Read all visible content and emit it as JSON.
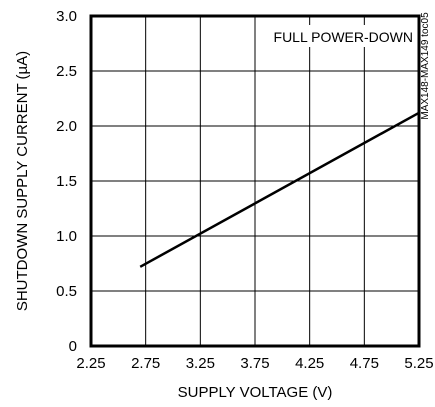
{
  "chart_data": {
    "type": "line",
    "title": "",
    "xlabel": "SUPPLY VOLTAGE (V)",
    "ylabel": "SHUTDOWN SUPPLY CURRENT (µA)",
    "xlim": [
      2.25,
      5.25
    ],
    "ylim": [
      0,
      3.0
    ],
    "x_ticks": [
      "2.25",
      "2.75",
      "3.25",
      "3.75",
      "4.25",
      "4.75",
      "5.25"
    ],
    "y_ticks": [
      "0",
      "0.5",
      "1.0",
      "1.5",
      "2.0",
      "2.5",
      "3.0"
    ],
    "grid": true,
    "annotation": "FULL POWER-DOWN",
    "side_label": "MAX148-MAX149 toc05",
    "series": [
      {
        "x": [
          2.7,
          5.25
        ],
        "y": [
          0.72,
          2.12
        ]
      }
    ],
    "line_color": "#000000"
  }
}
